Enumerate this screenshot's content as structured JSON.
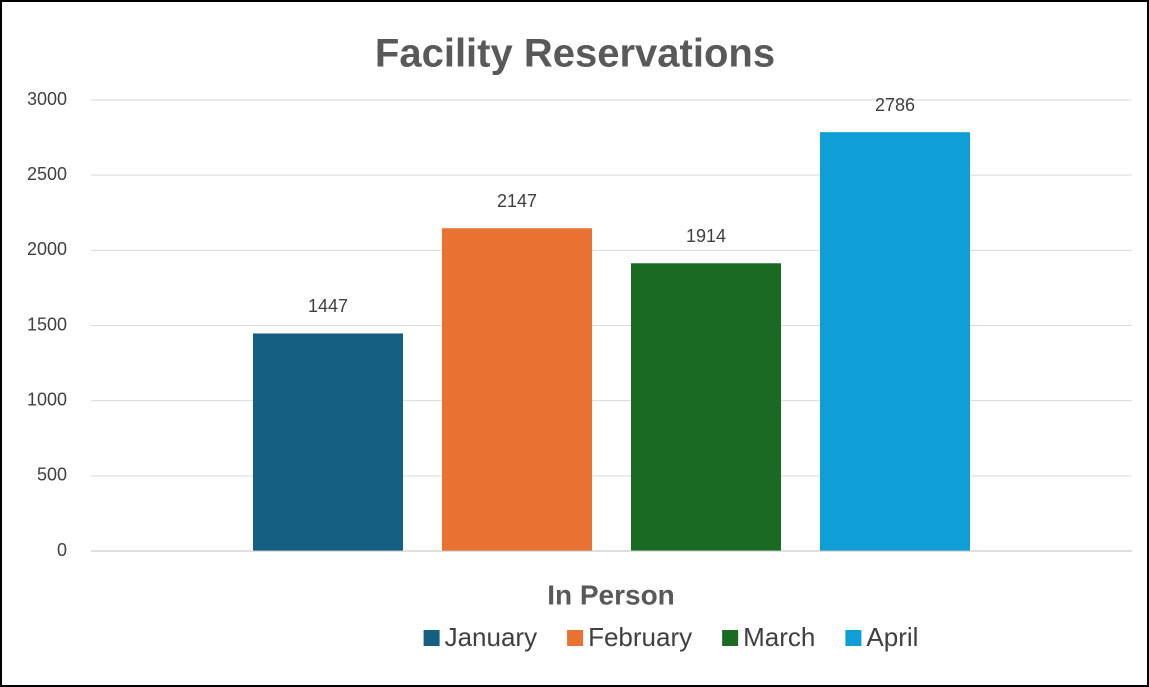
{
  "chart_data": {
    "type": "bar",
    "title": "Facility Reservations",
    "x_label": "In Person",
    "categories": [
      "In Person"
    ],
    "series": [
      {
        "name": "January",
        "color": "#156082",
        "values": [
          1447
        ]
      },
      {
        "name": "February",
        "color": "#e97132",
        "values": [
          2147
        ]
      },
      {
        "name": "March",
        "color": "#196b24",
        "values": [
          1914
        ]
      },
      {
        "name": "April",
        "color": "#0f9ed5",
        "values": [
          2786
        ]
      }
    ],
    "ylim": [
      0,
      3000
    ],
    "yticks": [
      0,
      500,
      1000,
      1500,
      2000,
      2500,
      3000
    ],
    "grid": true,
    "legend": "bottom"
  }
}
